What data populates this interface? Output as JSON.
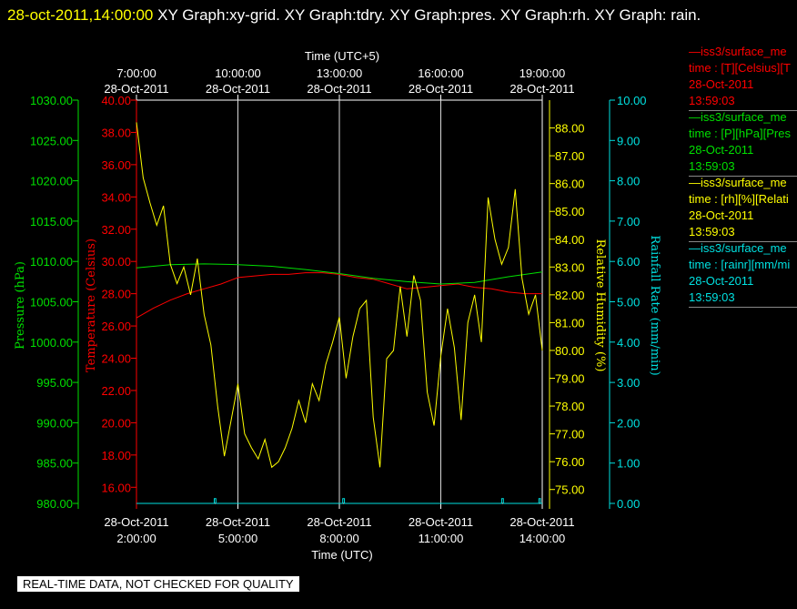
{
  "header": {
    "timestamp": "28-oct-2011,14:00:00",
    "titles": "XY Graph:xy-grid.  XY Graph:tdry.  XY Graph:pres.  XY Graph:rh.  XY Graph: rain."
  },
  "notice": "REAL-TIME DATA, NOT CHECKED FOR QUALITY",
  "legend": [
    {
      "series": "—iss3/surface_me",
      "field": "time : [T][Celsius][T",
      "date": "28-Oct-2011",
      "time": "13:59:03",
      "color": "#ff0000"
    },
    {
      "series": "—iss3/surface_me",
      "field": "time : [P][hPa][Pres",
      "date": "28-Oct-2011",
      "time": "13:59:03",
      "color": "#00e000"
    },
    {
      "series": "—iss3/surface_me",
      "field": "time : [rh][%][Relati",
      "date": "28-Oct-2011",
      "time": "13:59:03",
      "color": "#ffff00"
    },
    {
      "series": "—iss3/surface_me",
      "field": "time : [rainr][mm/mi",
      "date": "28-Oct-2011",
      "time": "13:59:03",
      "color": "#00e0e0"
    }
  ],
  "chart_data": {
    "type": "line",
    "top_axis": {
      "title": "Time (UTC+5)",
      "ticks": [
        {
          "t": "7:00:00",
          "d": "28-Oct-2011",
          "utc_hour": 2
        },
        {
          "t": "10:00:00",
          "d": "28-Oct-2011",
          "utc_hour": 5
        },
        {
          "t": "13:00:00",
          "d": "28-Oct-2011",
          "utc_hour": 8
        },
        {
          "t": "16:00:00",
          "d": "28-Oct-2011",
          "utc_hour": 11
        },
        {
          "t": "19:00:00",
          "d": "28-Oct-2011",
          "utc_hour": 14
        }
      ]
    },
    "bottom_axis": {
      "title": "Time (UTC)",
      "range_hours": [
        2,
        14
      ],
      "ticks": [
        {
          "d": "28-Oct-2011",
          "t": "2:00:00",
          "utc_hour": 2
        },
        {
          "d": "28-Oct-2011",
          "t": "5:00:00",
          "utc_hour": 5
        },
        {
          "d": "28-Oct-2011",
          "t": "8:00:00",
          "utc_hour": 8
        },
        {
          "d": "28-Oct-2011",
          "t": "11:00:00",
          "utc_hour": 11
        },
        {
          "d": "28-Oct-2011",
          "t": "14:00:00",
          "utc_hour": 14
        }
      ]
    },
    "grid": true,
    "axes": {
      "pressure": {
        "label": "Pressure (hPa)",
        "color": "#00e000",
        "min": 980,
        "max": 1030,
        "ticks": [
          "1030.00",
          "1025.00",
          "1020.00",
          "1015.00",
          "1010.00",
          "1005.00",
          "1000.00",
          "995.00",
          "990.00",
          "985.00",
          "980.00"
        ]
      },
      "temperature": {
        "label": "Temperature (Celsius)",
        "color": "#ff0000",
        "min": 15,
        "max": 40,
        "ticks": [
          "40.00",
          "38.00",
          "36.00",
          "34.00",
          "32.00",
          "30.00",
          "28.00",
          "26.00",
          "24.00",
          "22.00",
          "20.00",
          "18.00",
          "16.00"
        ]
      },
      "humidity": {
        "label": "Relative Humidity (%)",
        "color": "#ffff00",
        "min": 74.5,
        "max": 89.0,
        "ticks": [
          "88.00",
          "87.00",
          "86.00",
          "85.00",
          "84.00",
          "83.00",
          "82.00",
          "81.00",
          "80.00",
          "79.00",
          "78.00",
          "77.00",
          "76.00",
          "75.00"
        ]
      },
      "rain": {
        "label": "Rainfall Rate (mm/min)",
        "color": "#00e0e0",
        "min": 0,
        "max": 10,
        "ticks": [
          "10.00",
          "9.00",
          "8.00",
          "7.00",
          "6.00",
          "5.00",
          "4.00",
          "3.00",
          "2.00",
          "1.00",
          "0.00"
        ]
      }
    },
    "series": [
      {
        "axis": "temperature",
        "color": "#ff0000",
        "x": [
          2.0,
          2.5,
          3.0,
          3.5,
          4.0,
          4.5,
          5.0,
          5.5,
          6.0,
          6.5,
          7.0,
          7.5,
          8.0,
          8.5,
          9.0,
          9.5,
          10.0,
          10.5,
          11.0,
          11.5,
          12.0,
          12.5,
          13.0,
          13.5,
          14.0
        ],
        "y": [
          26.5,
          27.1,
          27.6,
          28.0,
          28.3,
          28.6,
          29.0,
          29.1,
          29.2,
          29.2,
          29.3,
          29.3,
          29.2,
          29.0,
          28.9,
          28.6,
          28.3,
          28.4,
          28.5,
          28.6,
          28.4,
          28.3,
          28.1,
          28.0,
          28.0
        ]
      },
      {
        "axis": "pressure",
        "color": "#00e000",
        "x": [
          2.0,
          3.0,
          4.0,
          5.0,
          6.0,
          7.0,
          8.0,
          9.0,
          10.0,
          11.0,
          12.0,
          13.0,
          14.0
        ],
        "y": [
          1009.2,
          1009.6,
          1009.7,
          1009.6,
          1009.4,
          1009.0,
          1008.5,
          1007.9,
          1007.5,
          1007.2,
          1007.4,
          1008.1,
          1008.7
        ]
      },
      {
        "axis": "humidity",
        "color": "#ffff00",
        "x": [
          2.0,
          2.2,
          2.4,
          2.6,
          2.8,
          3.0,
          3.2,
          3.4,
          3.6,
          3.8,
          4.0,
          4.2,
          4.4,
          4.6,
          4.8,
          5.0,
          5.2,
          5.4,
          5.6,
          5.8,
          6.0,
          6.2,
          6.4,
          6.6,
          6.8,
          7.0,
          7.2,
          7.4,
          7.6,
          7.8,
          8.0,
          8.2,
          8.4,
          8.6,
          8.8,
          9.0,
          9.2,
          9.4,
          9.6,
          9.8,
          10.0,
          10.2,
          10.4,
          10.6,
          10.8,
          11.0,
          11.2,
          11.4,
          11.6,
          11.8,
          12.0,
          12.2,
          12.4,
          12.6,
          12.8,
          13.0,
          13.2,
          13.4,
          13.6,
          13.8,
          14.0
        ],
        "y": [
          88.2,
          86.2,
          85.3,
          84.5,
          85.2,
          83.1,
          82.4,
          83.0,
          82.0,
          83.3,
          81.3,
          80.2,
          78.0,
          76.2,
          77.5,
          78.8,
          77.0,
          76.5,
          76.1,
          76.8,
          75.8,
          76.0,
          76.5,
          77.2,
          78.2,
          77.4,
          78.8,
          78.2,
          79.5,
          80.3,
          81.2,
          79.0,
          80.5,
          81.5,
          81.8,
          77.6,
          75.8,
          79.7,
          80.0,
          82.3,
          80.5,
          82.7,
          81.8,
          78.5,
          77.3,
          79.8,
          81.5,
          80.1,
          77.5,
          81.0,
          82.0,
          80.3,
          85.5,
          84.0,
          83.1,
          83.7,
          85.8,
          82.6,
          81.3,
          82.0,
          80.0
        ]
      },
      {
        "axis": "rain",
        "color": "#00e0e0",
        "x": [
          2.0,
          4.3,
          4.3,
          4.35,
          4.35,
          8.1,
          8.1,
          8.15,
          8.15,
          12.8,
          12.8,
          12.85,
          12.85,
          13.9,
          13.9,
          13.95,
          13.95,
          14.0
        ],
        "y": [
          0.0,
          0.0,
          0.12,
          0.12,
          0.0,
          0.0,
          0.12,
          0.12,
          0.0,
          0.0,
          0.12,
          0.12,
          0.0,
          0.0,
          0.12,
          0.12,
          0.0,
          0.0
        ]
      }
    ]
  }
}
